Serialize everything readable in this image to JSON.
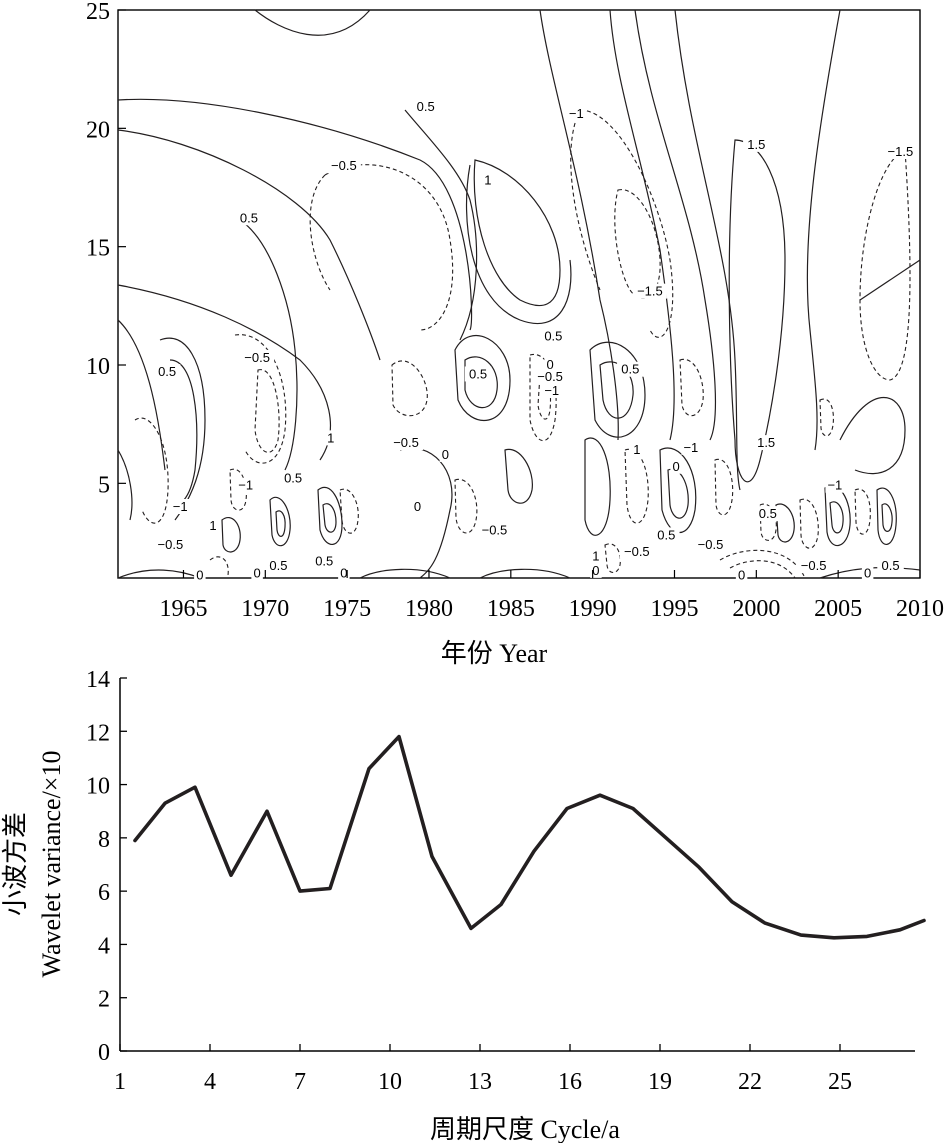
{
  "chart_data": [
    {
      "type": "contour",
      "xlabel": "年份 Year",
      "ylabel": "",
      "xlim": [
        1961,
        2010
      ],
      "ylim": [
        1,
        25
      ],
      "x_ticks": [
        "1965",
        "1970",
        "1975",
        "1980",
        "1985",
        "1990",
        "1995",
        "2000",
        "2005",
        "2010"
      ],
      "y_ticks": [
        "5",
        "10",
        "15",
        "20",
        "25"
      ],
      "line_styles": {
        "positive": "solid",
        "negative": "dashed"
      },
      "contour_levels": [
        -1.5,
        -1,
        -0.5,
        0,
        0.5,
        1,
        1.5
      ],
      "contour_labels": [
        {
          "text": "0.5",
          "x": 1979.8,
          "y": 20.9
        },
        {
          "text": "−1",
          "x": 1989.0,
          "y": 20.6
        },
        {
          "text": "1.5",
          "x": 2000.0,
          "y": 19.3
        },
        {
          "text": "−1.5",
          "x": 2008.8,
          "y": 19.0
        },
        {
          "text": "−0.5",
          "x": 1974.8,
          "y": 18.4
        },
        {
          "text": "1",
          "x": 1983.6,
          "y": 17.8
        },
        {
          "text": "0.5",
          "x": 1969.0,
          "y": 16.2
        },
        {
          "text": "−1.5",
          "x": 1993.5,
          "y": 13.1
        },
        {
          "text": "0.5",
          "x": 1987.6,
          "y": 11.2
        },
        {
          "text": "−0.5",
          "x": 1969.5,
          "y": 10.3
        },
        {
          "text": "0.5",
          "x": 1964.0,
          "y": 9.7
        },
        {
          "text": "0.5",
          "x": 1983.0,
          "y": 9.6
        },
        {
          "text": "0",
          "x": 1987.4,
          "y": 10.0
        },
        {
          "text": "−0.5",
          "x": 1987.4,
          "y": 9.5
        },
        {
          "text": "0.5",
          "x": 1992.3,
          "y": 9.8
        },
        {
          "text": "−1",
          "x": 1987.5,
          "y": 8.9
        },
        {
          "text": "1",
          "x": 1974.0,
          "y": 6.9
        },
        {
          "text": "−0.5",
          "x": 1978.6,
          "y": 6.7
        },
        {
          "text": "0",
          "x": 1981.0,
          "y": 6.2
        },
        {
          "text": "1",
          "x": 1992.7,
          "y": 6.4
        },
        {
          "text": "−1",
          "x": 1996.0,
          "y": 6.5
        },
        {
          "text": "1.5",
          "x": 2000.6,
          "y": 6.7
        },
        {
          "text": "0.5",
          "x": 1971.7,
          "y": 5.2
        },
        {
          "text": "−1",
          "x": 1968.8,
          "y": 4.9
        },
        {
          "text": "0",
          "x": 1995.1,
          "y": 5.7
        },
        {
          "text": "−1",
          "x": 2004.8,
          "y": 4.9
        },
        {
          "text": "−1",
          "x": 1964.8,
          "y": 4.0
        },
        {
          "text": "0",
          "x": 1979.3,
          "y": 4.0
        },
        {
          "text": "0.5",
          "x": 2000.7,
          "y": 3.7
        },
        {
          "text": "1",
          "x": 1966.8,
          "y": 3.2
        },
        {
          "text": "−0.5",
          "x": 1984.0,
          "y": 3.0
        },
        {
          "text": "0.5",
          "x": 1994.5,
          "y": 2.8
        },
        {
          "text": "−0.5",
          "x": 1964.2,
          "y": 2.4
        },
        {
          "text": "−0.5",
          "x": 1992.7,
          "y": 2.1
        },
        {
          "text": "−0.5",
          "x": 1997.2,
          "y": 2.4
        },
        {
          "text": "1",
          "x": 1990.2,
          "y": 1.9
        },
        {
          "text": "0",
          "x": 1990.2,
          "y": 1.3
        },
        {
          "text": "0.5",
          "x": 1970.8,
          "y": 1.5
        },
        {
          "text": "0.5",
          "x": 1973.6,
          "y": 1.7
        },
        {
          "text": "0",
          "x": 1969.5,
          "y": 1.2
        },
        {
          "text": "0",
          "x": 1966.0,
          "y": 1.1
        },
        {
          "text": "0",
          "x": 1974.8,
          "y": 1.2
        },
        {
          "text": "0",
          "x": 1999.1,
          "y": 1.1
        },
        {
          "text": "−0.5",
          "x": 2003.5,
          "y": 1.5
        },
        {
          "text": "0",
          "x": 2006.8,
          "y": 1.2
        },
        {
          "text": "0.5",
          "x": 2008.2,
          "y": 1.5
        }
      ]
    },
    {
      "type": "line",
      "xlabel": "周期尺度 Cycle/a",
      "ylabel_lines": [
        "小波方差",
        "Wavelet variance/×10"
      ],
      "xlim": [
        1,
        28
      ],
      "ylim": [
        0,
        14
      ],
      "x_ticks": [
        1,
        4,
        7,
        10,
        13,
        16,
        19,
        22,
        25
      ],
      "y_ticks": [
        0,
        2,
        4,
        6,
        8,
        10,
        12,
        14
      ],
      "series": [
        {
          "color": "#231f20",
          "x": [
            1.5,
            2.5,
            3.5,
            4.7,
            5.9,
            7.0,
            8.0,
            9.3,
            10.3,
            11.4,
            12.7,
            13.7,
            14.8,
            15.9,
            17.0,
            18.1,
            19.1,
            20.3,
            21.4,
            22.5,
            23.7,
            24.8,
            25.9,
            27.0,
            27.8
          ],
          "y": [
            7.9,
            9.3,
            9.9,
            6.6,
            9.0,
            6.0,
            6.1,
            10.6,
            11.8,
            7.3,
            4.6,
            5.5,
            7.5,
            9.1,
            9.6,
            9.1,
            8.1,
            6.9,
            5.6,
            4.8,
            4.35,
            4.25,
            4.3,
            4.55,
            4.9
          ]
        }
      ]
    }
  ]
}
